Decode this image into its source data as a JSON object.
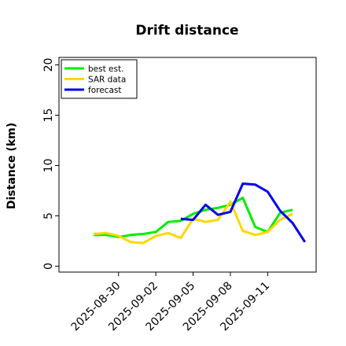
{
  "chart_data": {
    "type": "line",
    "title": "Drift distance",
    "xlabel": "",
    "ylabel": "Distance (km)",
    "ylim": [
      -0.5,
      21
    ],
    "yticks": [
      0,
      5,
      10,
      15,
      20
    ],
    "xlim": [
      "2025-08-26",
      "2025-09-13"
    ],
    "xtick_labels": [
      "2025-08-30",
      "2025-09-02",
      "2025-09-05",
      "2025-09-08",
      "2025-09-11"
    ],
    "xtick_dates": [
      "2025-08-30",
      "2025-09-02",
      "2025-09-05",
      "2025-09-08",
      "2025-09-11"
    ],
    "grid": false,
    "legend_position": "top-left",
    "series": [
      {
        "name": "best est.",
        "color": "#00ee00",
        "x": [
          "2025-08-28",
          "2025-08-29",
          "2025-08-30",
          "2025-08-31",
          "2025-09-01",
          "2025-09-02",
          "2025-09-03",
          "2025-09-04",
          "2025-09-05",
          "2025-09-06",
          "2025-09-07",
          "2025-09-08",
          "2025-09-09",
          "2025-09-10",
          "2025-09-11",
          "2025-09-12",
          "2025-09-13"
        ],
        "y": [
          3.1,
          3.1,
          2.9,
          3.1,
          3.2,
          3.4,
          4.4,
          4.5,
          5.2,
          5.6,
          5.8,
          6.1,
          6.8,
          3.9,
          3.4,
          5.3,
          5.6
        ]
      },
      {
        "name": "SAR data",
        "color": "#ffd700",
        "x": [
          "2025-08-28",
          "2025-08-29",
          "2025-08-30",
          "2025-08-31",
          "2025-09-01",
          "2025-09-02",
          "2025-09-03",
          "2025-09-04",
          "2025-09-05",
          "2025-09-06",
          "2025-09-07",
          "2025-09-08",
          "2025-09-09",
          "2025-09-10",
          "2025-09-11",
          "2025-09-12",
          "2025-09-13"
        ],
        "y": [
          3.2,
          3.3,
          3.0,
          2.4,
          2.3,
          3.0,
          3.3,
          2.8,
          4.7,
          4.4,
          4.6,
          6.4,
          3.5,
          3.1,
          3.4,
          4.6,
          5.2
        ]
      },
      {
        "name": "forecast",
        "color": "#0000ee",
        "x": [
          "2025-09-04",
          "2025-09-05",
          "2025-09-06",
          "2025-09-07",
          "2025-09-08",
          "2025-09-09",
          "2025-09-10",
          "2025-09-11",
          "2025-09-12",
          "2025-09-13",
          "2025-09-14"
        ],
        "y": [
          4.7,
          4.6,
          6.1,
          5.1,
          5.4,
          8.2,
          8.1,
          7.4,
          5.5,
          4.3,
          2.4
        ]
      }
    ]
  }
}
